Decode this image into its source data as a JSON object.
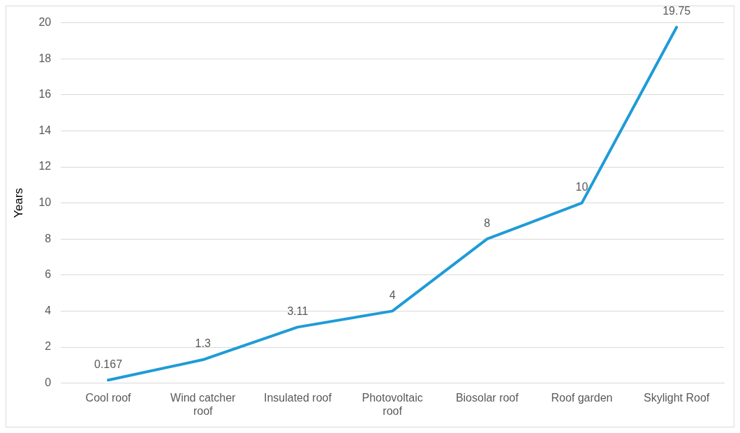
{
  "chart_data": {
    "type": "line",
    "ylabel": "Years",
    "categories": [
      "Cool roof",
      "Wind catcher roof",
      "Insulated roof",
      "Photovoltaic roof",
      "Biosolar roof",
      "Roof garden",
      "Skylight Roof"
    ],
    "series": [
      {
        "color": "#1f9bd7",
        "values": [
          0.167,
          1.3,
          3.11,
          4,
          8,
          10,
          19.75
        ]
      }
    ],
    "ylim": [
      0,
      20
    ],
    "yticks": [
      0,
      2,
      4,
      6,
      8,
      10,
      12,
      14,
      16,
      18,
      20
    ],
    "grid": "y",
    "legend": false,
    "marker": "none",
    "line_style": "solid",
    "data_labels": true
  }
}
